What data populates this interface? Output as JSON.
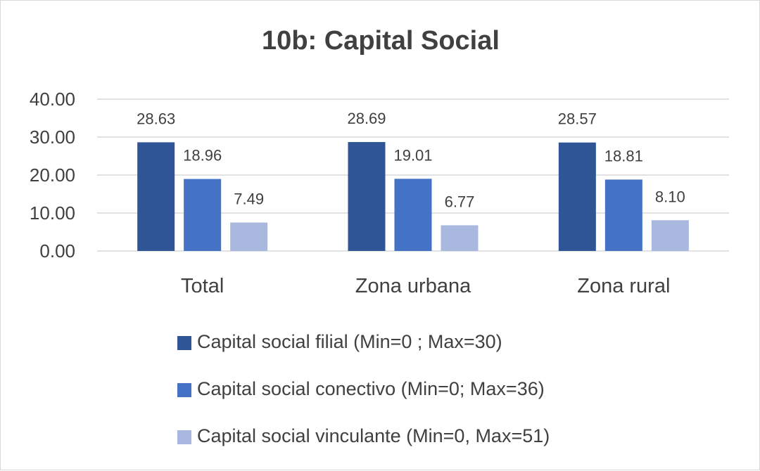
{
  "chart_data": {
    "type": "bar",
    "title": "10b: Capital Social",
    "categories": [
      "Total",
      "Zona urbana",
      "Zona rural"
    ],
    "series": [
      {
        "name": "Capital social filial (Min=0 ; Max=30)",
        "values": [
          28.63,
          28.69,
          28.57
        ],
        "labels": [
          "28.63",
          "28.69",
          "28.57"
        ],
        "color": "#2f5597"
      },
      {
        "name": "Capital social conectivo (Min=0; Max=36)",
        "values": [
          18.96,
          19.01,
          18.81
        ],
        "labels": [
          "18.96",
          "19.01",
          "18.81"
        ],
        "color": "#4472c4"
      },
      {
        "name": "Capital social vinculante (Min=0, Max=51)",
        "values": [
          7.49,
          6.77,
          8.1
        ],
        "labels": [
          "7.49",
          "6.77",
          "8.10"
        ],
        "color": "#a9b8de"
      }
    ],
    "y_ticks": [
      "0.00",
      "10.00",
      "20.00",
      "30.00",
      "40.00"
    ],
    "ylim": [
      0,
      40
    ],
    "grid": true,
    "legend_position": "bottom",
    "xlabel": "",
    "ylabel": ""
  }
}
